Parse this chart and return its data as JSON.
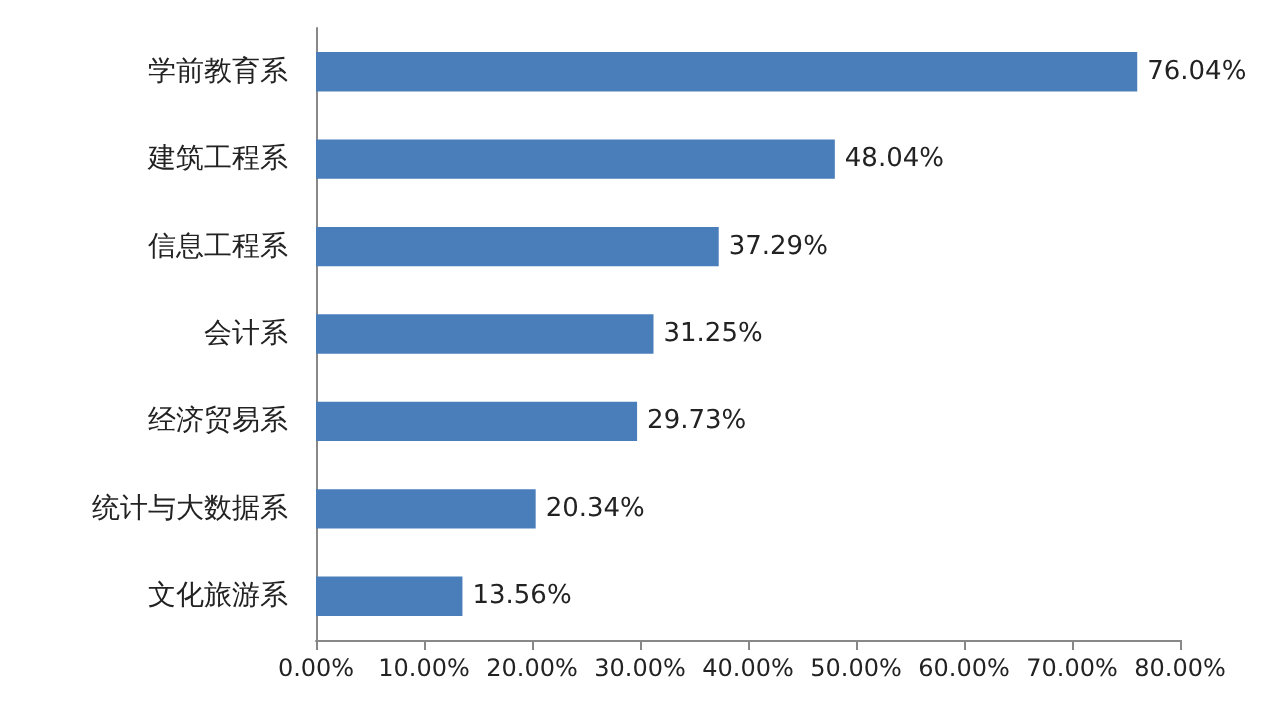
{
  "chart_data": {
    "type": "bar",
    "orientation": "horizontal",
    "categories": [
      "学前教育系",
      "建筑工程系",
      "信息工程系",
      "会计系",
      "经济贸易系",
      "统计与大数据系",
      "文化旅游系"
    ],
    "values": [
      76.04,
      48.04,
      37.29,
      31.25,
      29.73,
      20.34,
      13.56
    ],
    "value_labels": [
      "76.04%",
      "48.04%",
      "37.29%",
      "31.25%",
      "29.73%",
      "20.34%",
      "13.56%"
    ],
    "color": "#4a7ebb",
    "xlim": [
      0,
      80
    ],
    "xticks": [
      {
        "value": 0,
        "label": "0.00%"
      },
      {
        "value": 10,
        "label": "10.00%"
      },
      {
        "value": 20,
        "label": "20.00%"
      },
      {
        "value": 30,
        "label": "30.00%"
      },
      {
        "value": 40,
        "label": "40.00%"
      },
      {
        "value": 50,
        "label": "50.00%"
      },
      {
        "value": 60,
        "label": "60.00%"
      },
      {
        "value": 70,
        "label": "70.00%"
      },
      {
        "value": 80,
        "label": "80.00%"
      }
    ],
    "grid": false
  }
}
